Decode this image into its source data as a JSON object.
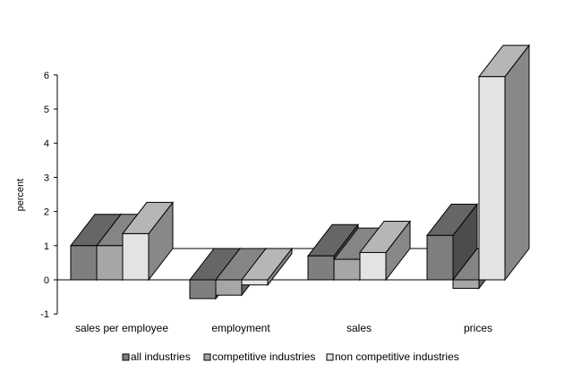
{
  "chart_data": {
    "type": "bar",
    "title": "",
    "xlabel": "",
    "ylabel": "percent",
    "ylim": [
      -1,
      6
    ],
    "yticks": [
      "-1",
      "0",
      "1",
      "2",
      "3",
      "4",
      "5",
      "6"
    ],
    "grid": false,
    "legend": "bottom",
    "categories": [
      "sales per employee",
      "employment",
      "sales",
      "prices"
    ],
    "series": [
      {
        "name": "all industries",
        "values": [
          1.0,
          -0.55,
          0.7,
          1.3
        ],
        "color": "#7f7f7f"
      },
      {
        "name": "competitive industries",
        "values": [
          1.0,
          -0.45,
          0.6,
          -0.25
        ],
        "color": "#a6a6a6"
      },
      {
        "name": "non competitive industries",
        "values": [
          1.35,
          -0.15,
          0.8,
          5.95
        ],
        "color": "#e3e3e3"
      }
    ]
  }
}
